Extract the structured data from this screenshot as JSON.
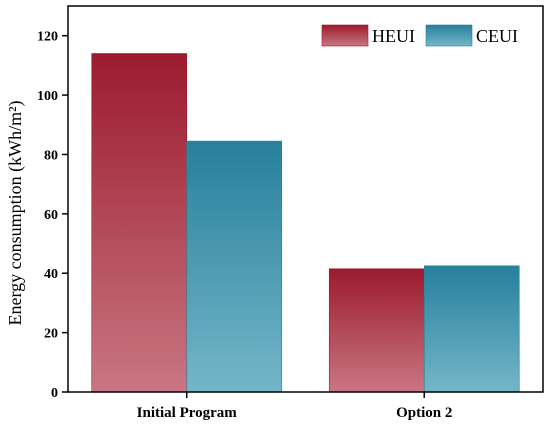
{
  "chart_data": {
    "type": "bar",
    "categories": [
      "Initial Program",
      "Option 2"
    ],
    "series": [
      {
        "name": "HEUI",
        "values": [
          114,
          41.5
        ]
      },
      {
        "name": "CEUI",
        "values": [
          84.5,
          42.5
        ]
      }
    ],
    "title": "",
    "xlabel": "",
    "ylabel": "Energy consumption (kWh/m²)",
    "ylim": [
      0,
      130
    ],
    "yticks": [
      0,
      20,
      40,
      60,
      80,
      100,
      120
    ],
    "grid": false,
    "legend_position": "top-right",
    "colors": {
      "HEUI": {
        "top": "#9b1b2e",
        "bottom": "#c97682"
      },
      "CEUI": {
        "top": "#27809c",
        "bottom": "#74b6c8"
      }
    }
  }
}
